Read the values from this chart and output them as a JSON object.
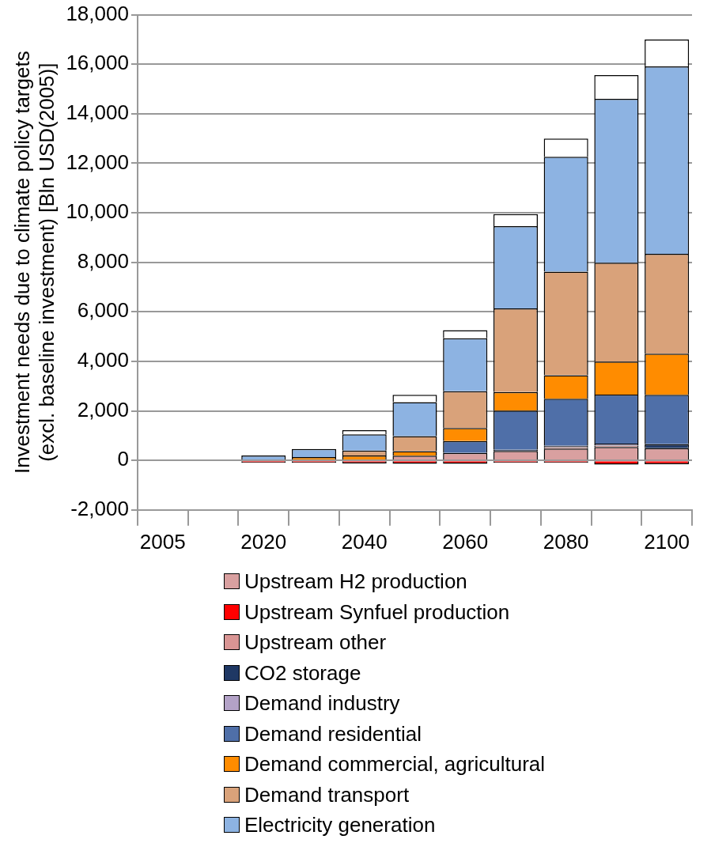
{
  "chart_data": {
    "type": "bar",
    "stacked": true,
    "ylabel": "Investment needs due to climate policy targets (excl. baseline investment) [Bln USD(2005)]",
    "categories": [
      "2005",
      null,
      "2020",
      null,
      "2040",
      null,
      "2060",
      null,
      "2080",
      null,
      "2100"
    ],
    "series": [
      {
        "name": "Upstream H2 production",
        "color": "#d9a0a0",
        "values": [
          null,
          null,
          0,
          0,
          0,
          190,
          300,
          380,
          480,
          540,
          490
        ]
      },
      {
        "name": "Upstream Synfuel production",
        "color": "#ff0000",
        "values": [
          null,
          null,
          -100,
          -100,
          -120,
          -140,
          -140,
          -100,
          -100,
          -170,
          -150
        ]
      },
      {
        "name": "Upstream other",
        "color": "#d99594",
        "values": [
          null,
          null,
          0,
          0,
          0,
          0,
          0,
          0,
          50,
          60,
          0
        ]
      },
      {
        "name": "CO2 storage",
        "color": "#1f3864",
        "values": [
          null,
          null,
          0,
          0,
          0,
          0,
          0,
          50,
          0,
          0,
          160
        ]
      },
      {
        "name": "Demand industry",
        "color": "#b3a2c7",
        "values": [
          null,
          null,
          0,
          0,
          0,
          0,
          0,
          0,
          60,
          80,
          0
        ]
      },
      {
        "name": "Demand residential",
        "color": "#4f6fa8",
        "values": [
          null,
          null,
          0,
          0,
          0,
          0,
          480,
          1580,
          1900,
          1980,
          2000
        ]
      },
      {
        "name": "Demand commercial, agricultural",
        "color": "#ff8c00",
        "values": [
          null,
          null,
          0,
          130,
          200,
          180,
          530,
          750,
          950,
          1330,
          1660
        ]
      },
      {
        "name": "Demand transport",
        "color": "#d9a27a",
        "values": [
          null,
          null,
          0,
          0,
          200,
          610,
          1480,
          3380,
          4180,
          3990,
          4030
        ]
      },
      {
        "name": "Electricity generation",
        "color": "#8db3e2",
        "values": [
          null,
          null,
          200,
          330,
          650,
          1370,
          2140,
          3320,
          4640,
          6620,
          7570
        ]
      },
      {
        "color": "#ffffff",
        "values": [
          null,
          null,
          0,
          0,
          170,
          295,
          330,
          490,
          740,
          960,
          1090
        ]
      }
    ],
    "ylim": [
      -2000,
      18000
    ],
    "yticks": [
      {
        "value": -2000,
        "label": "-2,000"
      },
      0,
      {
        "value": 2000,
        "label": "2,000"
      },
      {
        "value": 4000,
        "label": "4,000"
      },
      {
        "value": 6000,
        "label": "6,000"
      },
      {
        "value": 8000,
        "label": "8,000"
      },
      {
        "value": 10000,
        "label": "10,000"
      },
      {
        "value": 12000,
        "label": "12,000"
      },
      {
        "value": 14000,
        "label": "14,000"
      },
      {
        "value": 16000,
        "label": "16,000"
      },
      {
        "value": 18000,
        "label": "18,000"
      }
    ],
    "grid": "y",
    "legend": "bottom"
  }
}
